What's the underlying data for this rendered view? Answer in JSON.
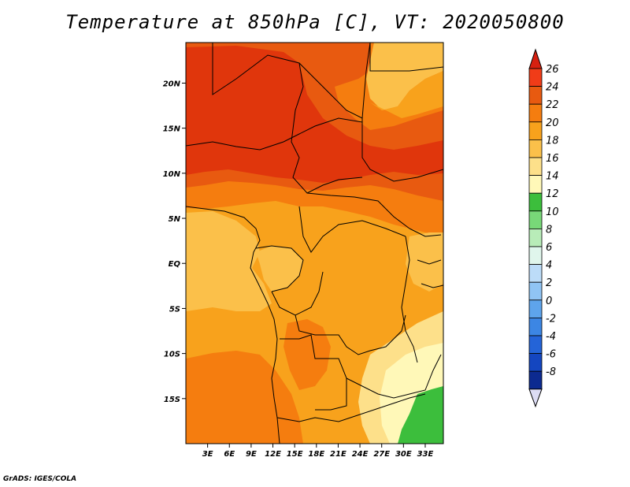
{
  "title": "Temperature at 850hPa [C], VT: 2020050800",
  "credit": "GrADS: IGES/COLA",
  "map": {
    "lon_range": [
      0,
      35.5
    ],
    "lat_range": [
      -20,
      24.5
    ],
    "lat_ticks": [
      {
        "value": 20,
        "label": "20N"
      },
      {
        "value": 15,
        "label": "15N"
      },
      {
        "value": 10,
        "label": "10N"
      },
      {
        "value": 5,
        "label": "5N"
      },
      {
        "value": 0,
        "label": "EQ"
      },
      {
        "value": -5,
        "label": "5S"
      },
      {
        "value": -10,
        "label": "10S"
      },
      {
        "value": -15,
        "label": "15S"
      }
    ],
    "lon_ticks": [
      {
        "value": 3,
        "label": "3E"
      },
      {
        "value": 6,
        "label": "6E"
      },
      {
        "value": 9,
        "label": "9E"
      },
      {
        "value": 12,
        "label": "12E"
      },
      {
        "value": 15,
        "label": "15E"
      },
      {
        "value": 18,
        "label": "18E"
      },
      {
        "value": 21,
        "label": "21E"
      },
      {
        "value": 24,
        "label": "24E"
      },
      {
        "value": 27,
        "label": "27E"
      },
      {
        "value": 30,
        "label": "30E"
      },
      {
        "value": 33,
        "label": "33E"
      }
    ]
  },
  "colorbar": {
    "levels": [
      {
        "label": "26",
        "color": "#f03c18"
      },
      {
        "label": "24",
        "color": "#e85a10"
      },
      {
        "label": "22",
        "color": "#f57d0f"
      },
      {
        "label": "20",
        "color": "#f8a21c"
      },
      {
        "label": "18",
        "color": "#fbc04a"
      },
      {
        "label": "16",
        "color": "#fde08a"
      },
      {
        "label": "14",
        "color": "#fff8b8"
      },
      {
        "label": "12",
        "color": "#3cbe3c"
      },
      {
        "label": "10",
        "color": "#78d878"
      },
      {
        "label": "8",
        "color": "#b8ecb8"
      },
      {
        "label": "6",
        "color": "#e0f6ec"
      },
      {
        "label": "4",
        "color": "#bcdcf8"
      },
      {
        "label": "2",
        "color": "#90c4f4"
      },
      {
        "label": "0",
        "color": "#5ea4ec"
      },
      {
        "label": "-2",
        "color": "#3c86e4"
      },
      {
        "label": "-4",
        "color": "#2464d8"
      },
      {
        "label": "-6",
        "color": "#1446c0"
      },
      {
        "label": "-8",
        "color": "#0c2a90"
      }
    ],
    "top_arrow_color": "#d62010",
    "bottom_arrow_color": "#dcdcf4"
  }
}
